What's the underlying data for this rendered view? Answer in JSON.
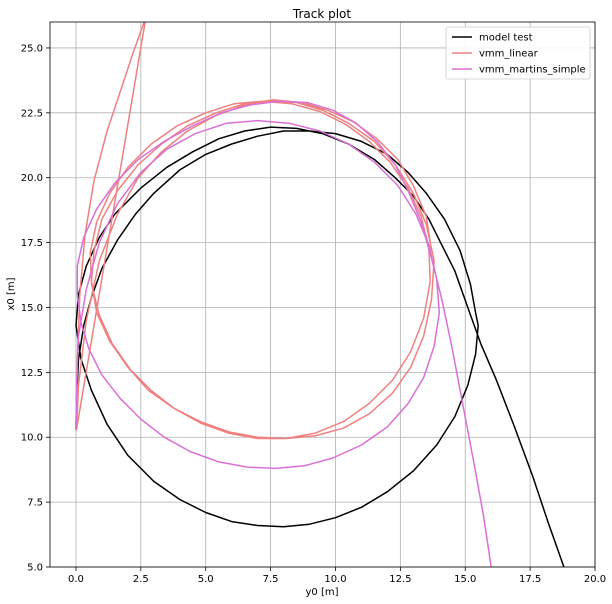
{
  "chart_data": {
    "type": "line",
    "title": "Track plot",
    "xlabel": "y0 [m]",
    "ylabel": "x0 [m]",
    "xlim": [
      -1.0,
      20.0
    ],
    "ylim": [
      5.0,
      26.0
    ],
    "grid": true,
    "legend_position": "top-right",
    "xticks": [
      0.0,
      2.5,
      5.0,
      7.5,
      10.0,
      12.5,
      15.0,
      17.5,
      20.0
    ],
    "yticks": [
      5.0,
      7.5,
      10.0,
      12.5,
      15.0,
      17.5,
      20.0,
      22.5,
      25.0
    ],
    "xtick_labels": [
      "0.0",
      "2.5",
      "5.0",
      "7.5",
      "10.0",
      "12.5",
      "15.0",
      "17.5",
      "20.0"
    ],
    "ytick_labels": [
      "5.0",
      "7.5",
      "10.0",
      "12.5",
      "15.0",
      "17.5",
      "20.0",
      "22.5",
      "25.0"
    ],
    "series": [
      {
        "name": "model test",
        "color": "#000000",
        "x": [
          0.0,
          0.02,
          0.1,
          0.3,
          0.6,
          1.0,
          1.6,
          2.3,
          3.0,
          4.0,
          5.0,
          6.0,
          7.0,
          8.0,
          9.0,
          10.0,
          11.0,
          12.0,
          12.8,
          13.5,
          14.2,
          14.8,
          15.2,
          15.4,
          15.5,
          15.4,
          15.1,
          14.6,
          13.9,
          13.0,
          12.0,
          11.0,
          10.0,
          9.0,
          8.0,
          7.0,
          6.0,
          5.0,
          4.0,
          3.0,
          2.0,
          1.2,
          0.6,
          0.2,
          0.0,
          0.1,
          0.4,
          0.9,
          1.5,
          2.5,
          3.5,
          4.5,
          5.5,
          6.5,
          7.5,
          8.5,
          9.5,
          10.5,
          11.5,
          12.3,
          13.0,
          13.6,
          14.1,
          14.6,
          15.1,
          15.6,
          16.2,
          16.9,
          17.6,
          18.2,
          18.8
        ],
        "y": [
          10.3,
          11.5,
          13.0,
          14.3,
          15.4,
          16.5,
          17.6,
          18.6,
          19.4,
          20.3,
          20.9,
          21.3,
          21.6,
          21.8,
          21.8,
          21.7,
          21.4,
          20.9,
          20.2,
          19.4,
          18.4,
          17.2,
          15.9,
          14.8,
          14.3,
          13.2,
          12.0,
          10.8,
          9.7,
          8.7,
          7.9,
          7.3,
          6.9,
          6.65,
          6.55,
          6.6,
          6.75,
          7.1,
          7.6,
          8.3,
          9.3,
          10.5,
          11.8,
          13.0,
          14.3,
          15.5,
          16.6,
          17.7,
          18.6,
          19.6,
          20.4,
          21.0,
          21.5,
          21.8,
          21.95,
          21.9,
          21.7,
          21.3,
          20.7,
          20.0,
          19.3,
          18.4,
          17.4,
          16.4,
          15.0,
          13.6,
          12.2,
          10.4,
          8.5,
          6.7,
          5.0
        ]
      },
      {
        "name": "vmm_linear",
        "color": "#f08080",
        "x": [
          0.0,
          0.05,
          0.15,
          0.35,
          0.7,
          1.2,
          1.7,
          2.2,
          2.7,
          0.02,
          0.1,
          0.4,
          0.9,
          1.6,
          2.4,
          3.3,
          4.3,
          5.4,
          6.5,
          7.5,
          8.5,
          9.5,
          10.5,
          11.5,
          12.3,
          13.0,
          13.5,
          13.8,
          13.7,
          13.4,
          12.9,
          12.2,
          11.3,
          10.3,
          9.2,
          8.1,
          7.0,
          5.9,
          4.8,
          3.8,
          2.9,
          2.1,
          1.4,
          0.9,
          0.6,
          0.55,
          0.8,
          1.3,
          2.0,
          2.9,
          3.9,
          5.0,
          6.1,
          7.2,
          8.3,
          9.4,
          10.4,
          11.3,
          12.1,
          12.8,
          13.3,
          13.6,
          13.65,
          13.4,
          12.9,
          12.2,
          11.3,
          10.3,
          9.2,
          8.1,
          7.0,
          5.9,
          4.8,
          3.8,
          2.8,
          2.0,
          1.3,
          0.8,
          0.6,
          0.7,
          1.0,
          1.6,
          2.4,
          3.3,
          4.3,
          5.4,
          6.5,
          7.6,
          8.7,
          9.7,
          10.7,
          11.6,
          12.4,
          13.0,
          13.5,
          13.7
        ],
        "y": [
          10.3,
          13.0,
          15.5,
          17.8,
          19.9,
          21.8,
          23.3,
          24.8,
          26.2,
          10.3,
          12.0,
          14.5,
          16.8,
          18.6,
          20.0,
          21.0,
          21.8,
          22.4,
          22.8,
          22.95,
          22.9,
          22.6,
          22.1,
          21.4,
          20.5,
          19.4,
          18.2,
          16.8,
          15.3,
          13.9,
          12.7,
          11.7,
          10.9,
          10.35,
          10.05,
          9.95,
          10.0,
          10.2,
          10.6,
          11.1,
          11.8,
          12.6,
          13.6,
          14.7,
          15.9,
          17.1,
          18.3,
          19.4,
          20.4,
          21.3,
          22.0,
          22.5,
          22.85,
          22.95,
          22.85,
          22.55,
          22.05,
          21.4,
          20.6,
          19.6,
          18.5,
          17.3,
          16.0,
          14.6,
          13.3,
          12.2,
          11.3,
          10.6,
          10.15,
          9.95,
          9.95,
          10.15,
          10.55,
          11.1,
          11.8,
          12.7,
          13.7,
          14.8,
          16.0,
          17.2,
          18.4,
          19.5,
          20.5,
          21.3,
          22.0,
          22.5,
          22.85,
          23.0,
          22.9,
          22.6,
          22.15,
          21.5,
          20.7,
          19.7,
          18.5,
          17.2
        ]
      },
      {
        "name": "vmm_martins_simple",
        "color": "#da70d6",
        "x": [
          0.0,
          0.02,
          0.1,
          0.4,
          0.9,
          1.6,
          2.5,
          3.5,
          4.6,
          5.8,
          7.0,
          8.2,
          9.4,
          10.5,
          11.5,
          12.4,
          13.1,
          13.6,
          13.9,
          14.0,
          13.8,
          13.4,
          12.8,
          12.0,
          11.0,
          9.9,
          8.8,
          7.7,
          6.6,
          5.5,
          4.4,
          3.4,
          2.5,
          1.7,
          1.0,
          0.5,
          0.2,
          0.05,
          0.05,
          0.3,
          0.8,
          1.5,
          2.4,
          3.4,
          4.5,
          5.6,
          6.7,
          7.8,
          8.9,
          9.9,
          10.8,
          11.6,
          12.3,
          12.8,
          13.3,
          13.7,
          14.1,
          14.5,
          14.9,
          15.3,
          15.7,
          16.0
        ],
        "y": [
          10.3,
          12.0,
          13.9,
          15.7,
          17.5,
          19.0,
          20.2,
          21.1,
          21.7,
          22.1,
          22.2,
          22.1,
          21.8,
          21.3,
          20.6,
          19.7,
          18.6,
          17.4,
          16.1,
          14.8,
          13.5,
          12.3,
          11.3,
          10.4,
          9.7,
          9.2,
          8.9,
          8.8,
          8.85,
          9.05,
          9.45,
          10.0,
          10.7,
          11.5,
          12.4,
          13.4,
          14.4,
          15.5,
          16.6,
          17.7,
          18.8,
          19.8,
          20.7,
          21.4,
          22.0,
          22.5,
          22.8,
          22.95,
          22.9,
          22.6,
          22.1,
          21.4,
          20.5,
          19.5,
          18.3,
          16.9,
          15.3,
          13.4,
          11.3,
          9.2,
          7.0,
          5.0
        ]
      }
    ]
  }
}
